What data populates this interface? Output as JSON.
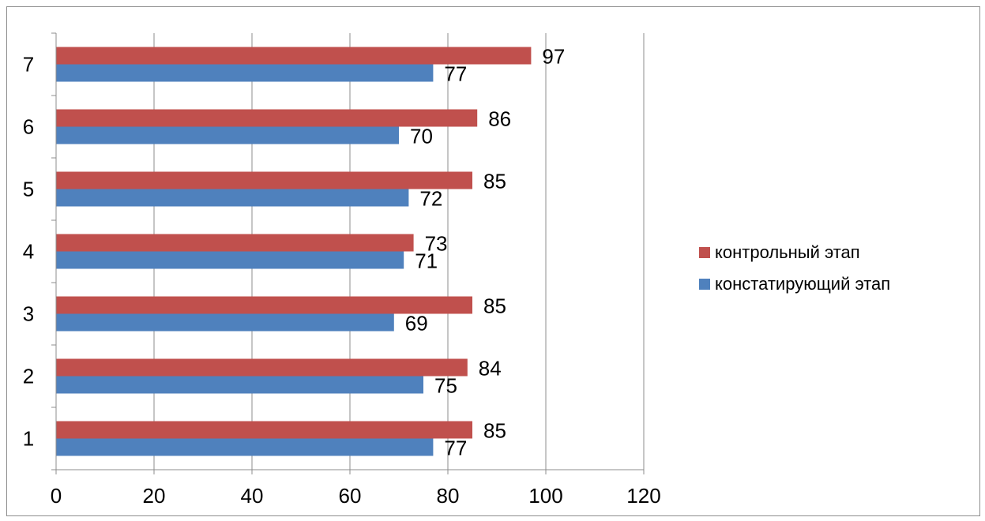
{
  "chart_data": {
    "type": "bar",
    "orientation": "horizontal",
    "categories": [
      "1",
      "2",
      "3",
      "4",
      "5",
      "6",
      "7"
    ],
    "series": [
      {
        "name": "констатирующий этап",
        "color": "#4f81bd",
        "values": [
          77,
          75,
          69,
          71,
          72,
          70,
          77
        ]
      },
      {
        "name": "контрольный этап",
        "color": "#c0504d",
        "values": [
          85,
          84,
          85,
          73,
          85,
          86,
          97
        ]
      }
    ],
    "xlim": [
      0,
      120
    ],
    "x_ticks": [
      "0",
      "20",
      "40",
      "60",
      "80",
      "100",
      "120"
    ],
    "grid": "vertical",
    "legend_position": "right",
    "legend_order": [
      "контрольный этап",
      "констатирующий этап"
    ]
  }
}
